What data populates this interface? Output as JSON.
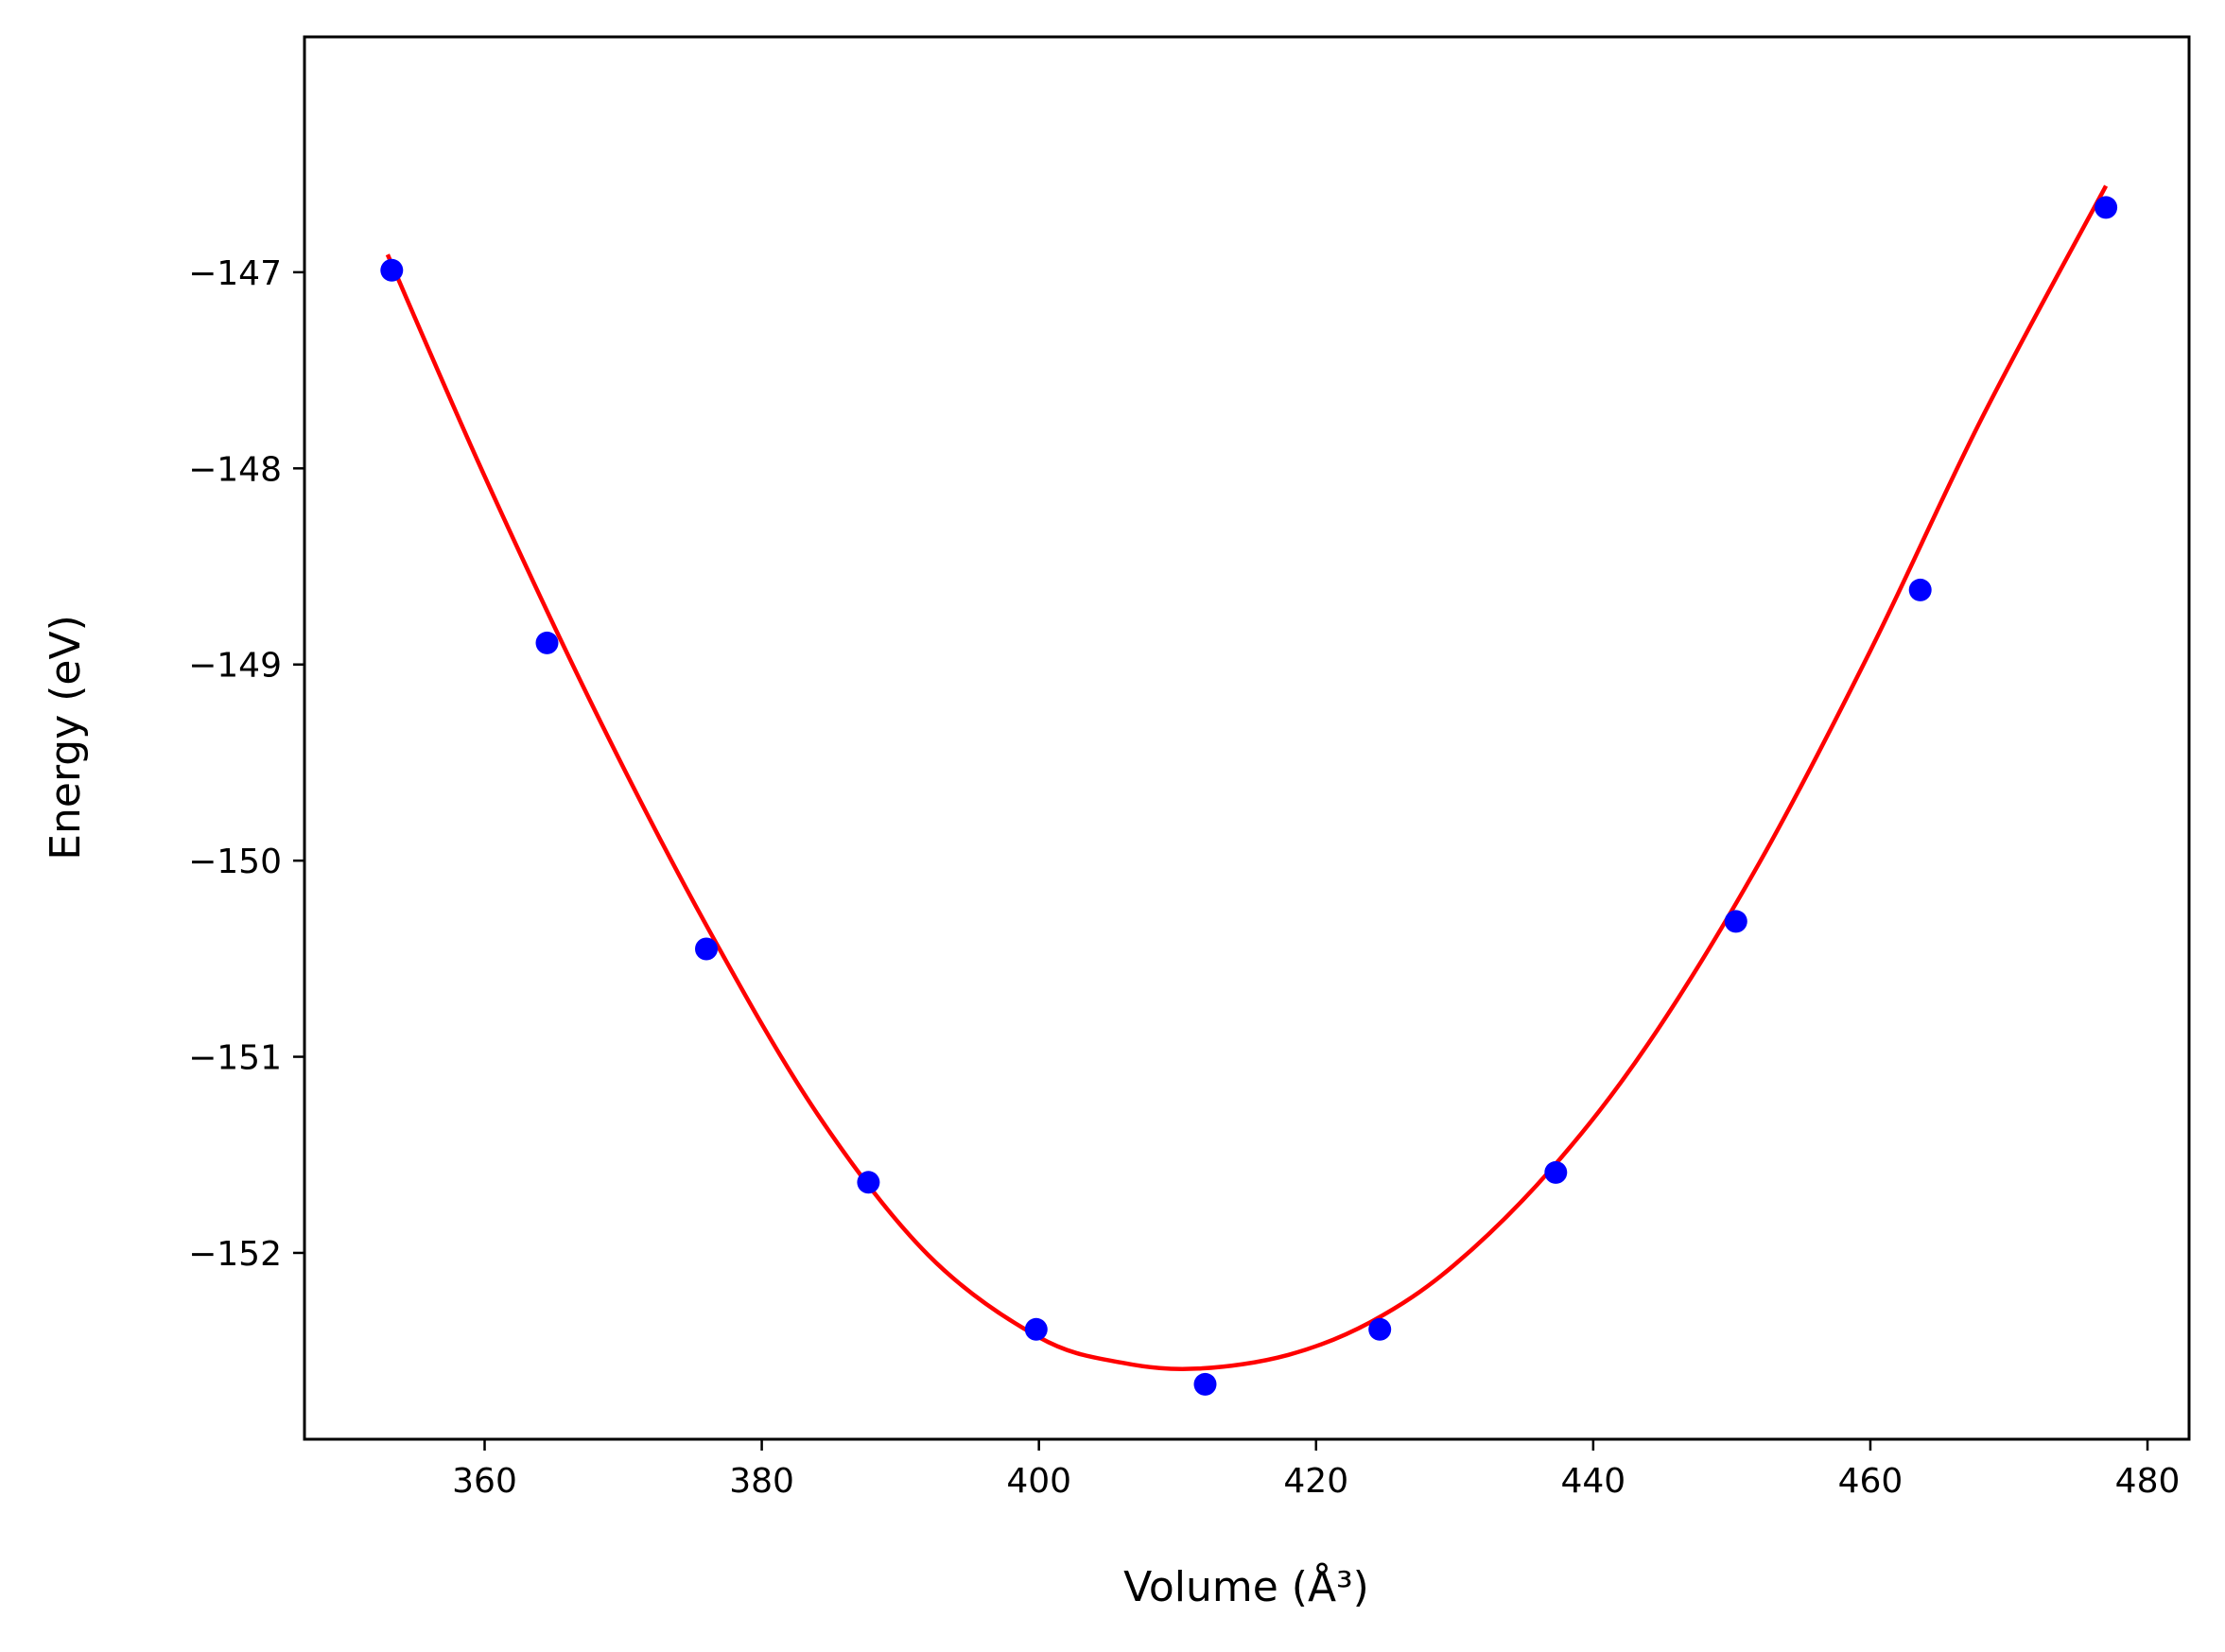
{
  "chart_data": {
    "type": "scatter",
    "xlabel": "Volume (Å³)",
    "ylabel": "Energy (eV)",
    "xlim": [
      347,
      483
    ],
    "ylim": [
      -152.95,
      -145.8
    ],
    "xticks": [
      360,
      380,
      400,
      420,
      440,
      460,
      480
    ],
    "yticks": [
      -147,
      -148,
      -149,
      -150,
      -151,
      -152
    ],
    "xtick_labels": [
      "360",
      "380",
      "400",
      "420",
      "440",
      "460",
      "480"
    ],
    "ytick_labels": [
      "−147",
      "−148",
      "−149",
      "−150",
      "−151",
      "−152"
    ],
    "grid": false,
    "series": [
      {
        "kind": "points",
        "color": "#0000ff",
        "x": [
          353.3,
          364.5,
          376.0,
          387.7,
          399.8,
          412.0,
          424.6,
          437.3,
          450.3,
          463.6,
          477.0
        ],
        "y": [
          -146.99,
          -148.89,
          -150.45,
          -151.64,
          -152.39,
          -152.67,
          -152.39,
          -151.59,
          -150.31,
          -148.62,
          -146.67
        ]
      },
      {
        "kind": "fit-curve",
        "color": "#ff0000",
        "x": [
          353.0,
          360.0,
          368.0,
          376.0,
          384.0,
          392.0,
          400.0,
          406.0,
          411.5,
          418.0,
          424.0,
          430.0,
          437.0,
          444.0,
          452.0,
          460.0,
          468.0,
          477.0
        ],
        "y": [
          -146.91,
          -148.04,
          -149.24,
          -150.33,
          -151.29,
          -152.01,
          -152.43,
          -152.56,
          -152.59,
          -152.52,
          -152.35,
          -152.06,
          -151.57,
          -150.93,
          -150.01,
          -148.93,
          -147.75,
          -146.56
        ]
      }
    ]
  }
}
